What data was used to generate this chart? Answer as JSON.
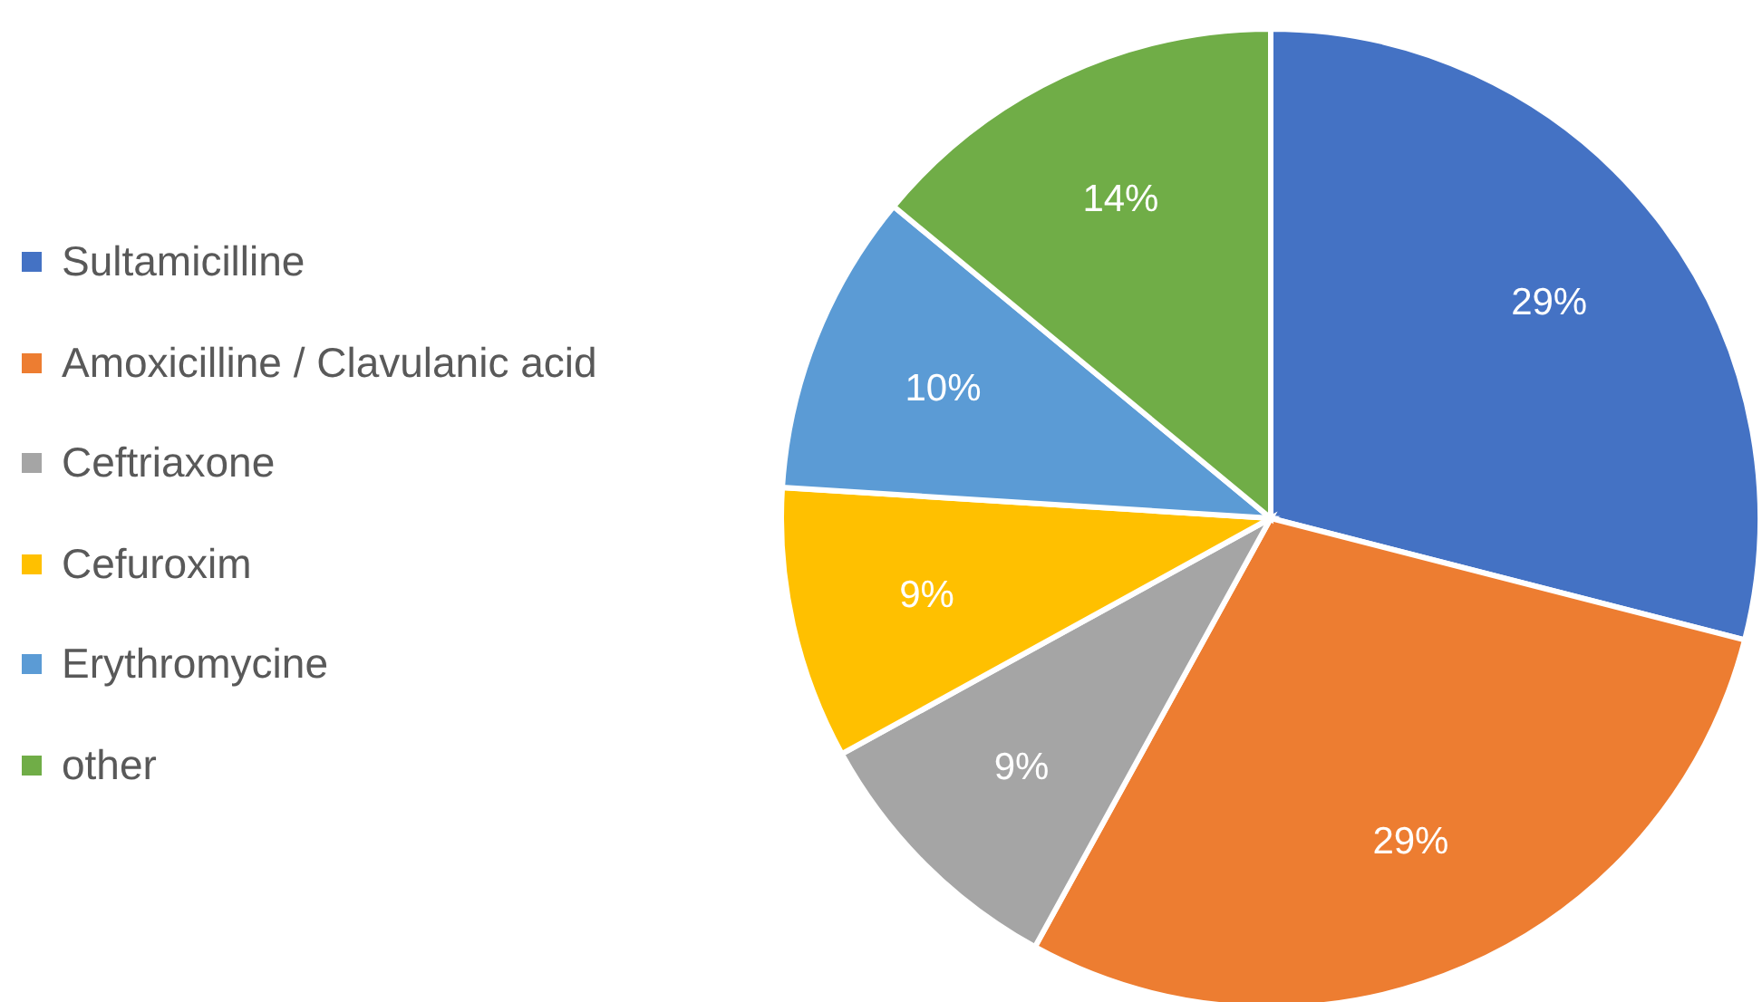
{
  "chart_data": {
    "type": "pie",
    "categories": [
      "Sultamicilline",
      "Amoxicilline / Clavulanic acid",
      "Ceftriaxone",
      "Cefuroxim",
      "Erythromycine",
      "other"
    ],
    "values": [
      29,
      29,
      9,
      9,
      10,
      14
    ],
    "colors": [
      "#4472c4",
      "#ed7d31",
      "#a5a5a5",
      "#ffc000",
      "#5b9bd5",
      "#70ad47"
    ],
    "value_labels": [
      "29%",
      "29%",
      "9%",
      "9%",
      "10%",
      "14%"
    ],
    "legend": "left"
  }
}
